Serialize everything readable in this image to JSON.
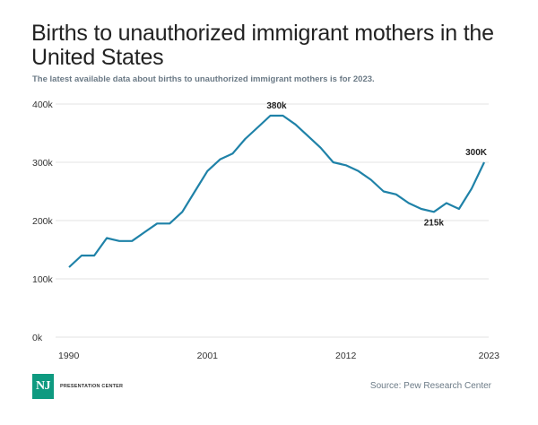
{
  "header": {
    "title": "Births to unauthorized immigrant mothers in the United States",
    "subtitle": "The latest available data about births to unauthorized immigrant mothers is for 2023."
  },
  "footer": {
    "logo_mark": "NJ",
    "logo_text": "PRESENTATION CENTER",
    "source": "Source: Pew Research Center"
  },
  "colors": {
    "series": "#1f82a8",
    "logo": "#0e9a80"
  },
  "chart_data": {
    "type": "line",
    "title": "Births to unauthorized immigrant mothers in the United States",
    "subtitle": "The latest available data about births to unauthorized immigrant mothers is for 2023.",
    "xlabel": "",
    "ylabel": "",
    "x": [
      1990,
      1991,
      1992,
      1993,
      1994,
      1995,
      1996,
      1997,
      1998,
      1999,
      2000,
      2001,
      2002,
      2003,
      2004,
      2005,
      2006,
      2007,
      2008,
      2009,
      2010,
      2011,
      2012,
      2013,
      2014,
      2015,
      2016,
      2017,
      2018,
      2019,
      2020,
      2021,
      2022,
      2023
    ],
    "series": [
      {
        "name": "Births to unauthorized immigrant mothers",
        "values": [
          120000,
          140000,
          140000,
          170000,
          165000,
          165000,
          180000,
          195000,
          195000,
          215000,
          250000,
          285000,
          305000,
          315000,
          340000,
          360000,
          380000,
          380000,
          365000,
          345000,
          325000,
          300000,
          295000,
          285000,
          270000,
          250000,
          245000,
          230000,
          220000,
          215000,
          230000,
          220000,
          255000,
          300000
        ]
      }
    ],
    "xlim": [
      1990,
      2023
    ],
    "ylim": [
      0,
      400000
    ],
    "x_ticks": [
      1990,
      2001,
      2012,
      2023
    ],
    "x_tick_labels": [
      "1990",
      "2001",
      "2012",
      "2023"
    ],
    "y_ticks": [
      0,
      100000,
      200000,
      300000,
      400000
    ],
    "y_tick_labels": [
      "0k",
      "100k",
      "200k",
      "300k",
      "400k"
    ],
    "grid": true,
    "legend": "none",
    "annotations": [
      {
        "x": 2006.5,
        "y": 380000,
        "text": "380k",
        "position": "above"
      },
      {
        "x": 2019,
        "y": 215000,
        "text": "215k",
        "position": "below"
      },
      {
        "x": 2023,
        "y": 300000,
        "text": "300K",
        "position": "above"
      }
    ]
  }
}
